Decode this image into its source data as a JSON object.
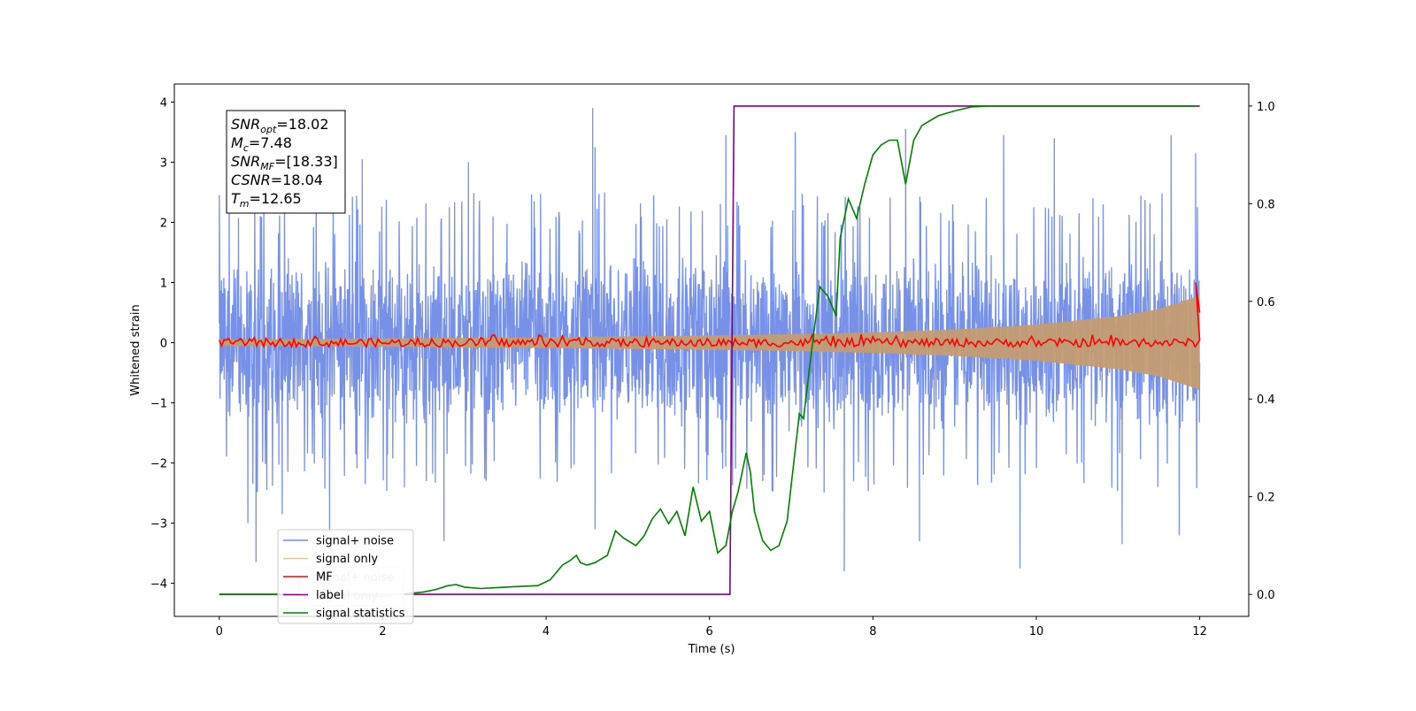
{
  "chart_data": {
    "type": "line",
    "xlabel": "Time (s)",
    "ylabel": "Whitened strain",
    "xlim": [
      -0.55,
      12.6
    ],
    "ylim": [
      -4.55,
      4.3
    ],
    "y2lim": [
      -0.045,
      1.045
    ],
    "xticks": [
      0,
      2,
      4,
      6,
      8,
      10,
      12
    ],
    "yticks": [
      -4,
      -3,
      -2,
      -1,
      0,
      1,
      2,
      3,
      4
    ],
    "y2ticks": [
      0.0,
      0.2,
      0.4,
      0.6,
      0.8,
      1.0
    ],
    "ytick_labels": [
      "−4",
      "−3",
      "−2",
      "−1",
      "0",
      "1",
      "2",
      "3",
      "4"
    ],
    "y2tick_labels": [
      "0.0",
      "0.2",
      "0.4",
      "0.6",
      "0.8",
      "1.0"
    ],
    "grid": false,
    "legend_position": "lower-left",
    "info_box": {
      "lines": [
        {
          "sym": "SNR",
          "sub": "opt",
          "value": "=18.02"
        },
        {
          "sym": "M",
          "sub": "c",
          "value": "=7.48"
        },
        {
          "sym": "SNR",
          "sub": "MF",
          "value": "=[18.33]"
        },
        {
          "sym": "CSNR",
          "sub": "",
          "value": "=18.04"
        },
        {
          "sym": "T",
          "sub": "m",
          "value": "=12.65"
        }
      ]
    },
    "legend": [
      {
        "label": "signal+ noise",
        "color": "#6f8be6"
      },
      {
        "label": "signal only",
        "color": "#f5c16c"
      },
      {
        "label": "MF",
        "color": "#ff0000"
      },
      {
        "label": "label",
        "color": "#800080"
      },
      {
        "label": "signal statistics",
        "color": "#008000"
      }
    ],
    "ghost_legend": [
      {
        "label": "signal+ noise"
      },
      {
        "label": "signal only"
      }
    ],
    "series": [
      {
        "name": "signal+ noise",
        "axis": "left",
        "color": "#6f8be6",
        "x_range": [
          0,
          12
        ],
        "envelope_typical": 1.5,
        "notable_peaks": [
          {
            "x": 0.0,
            "y": 2.45
          },
          {
            "x": 0.12,
            "y": 2.7
          },
          {
            "x": 0.35,
            "y": -3.0
          },
          {
            "x": 0.45,
            "y": -3.65
          },
          {
            "x": 0.77,
            "y": -2.85
          },
          {
            "x": 1.35,
            "y": -3.15
          },
          {
            "x": 1.75,
            "y": 3.05
          },
          {
            "x": 2.75,
            "y": -3.3
          },
          {
            "x": 3.05,
            "y": 3.0
          },
          {
            "x": 4.6,
            "y": 3.25
          },
          {
            "x": 4.6,
            "y": -3.1
          },
          {
            "x": 4.57,
            "y": 3.9
          },
          {
            "x": 6.2,
            "y": 3.45
          },
          {
            "x": 7.05,
            "y": 3.5
          },
          {
            "x": 7.65,
            "y": -3.8
          },
          {
            "x": 8.4,
            "y": 3.55
          },
          {
            "x": 8.57,
            "y": -3.3
          },
          {
            "x": 9.6,
            "y": 3.45
          },
          {
            "x": 9.8,
            "y": -3.75
          },
          {
            "x": 10.22,
            "y": 3.4
          },
          {
            "x": 11.05,
            "y": -3.35
          },
          {
            "x": 11.65,
            "y": 3.45
          },
          {
            "x": 11.75,
            "y": -3.2
          },
          {
            "x": 11.95,
            "y": 3.15
          }
        ]
      },
      {
        "name": "signal only",
        "axis": "left",
        "color": "#c49c72",
        "envelope": {
          "x": [
            0,
            2,
            4,
            6,
            7,
            8,
            9,
            10,
            11,
            11.5,
            12
          ],
          "amp": [
            0.05,
            0.07,
            0.09,
            0.12,
            0.14,
            0.17,
            0.22,
            0.3,
            0.44,
            0.56,
            0.78
          ]
        }
      },
      {
        "name": "MF",
        "axis": "left",
        "color": "#ff0000",
        "x_range": [
          0,
          12
        ],
        "level": 0.0,
        "ripple": 0.07,
        "end_spike": {
          "x": 11.95,
          "y": 1.0
        }
      },
      {
        "name": "label",
        "axis": "right",
        "color": "#800080",
        "x": [
          0,
          6.25,
          6.3,
          12
        ],
        "y": [
          0.0,
          0.0,
          1.0,
          1.0
        ]
      },
      {
        "name": "signal statistics",
        "axis": "right",
        "color": "#008000",
        "x": [
          0,
          0.3,
          0.5,
          1.0,
          1.5,
          2.0,
          2.5,
          2.65,
          2.8,
          2.9,
          3.0,
          3.2,
          3.5,
          3.9,
          4.05,
          4.2,
          4.3,
          4.37,
          4.42,
          4.5,
          4.6,
          4.75,
          4.85,
          4.95,
          5.1,
          5.2,
          5.3,
          5.4,
          5.5,
          5.6,
          5.7,
          5.8,
          5.9,
          6.0,
          6.1,
          6.2,
          6.28,
          6.35,
          6.45,
          6.5,
          6.55,
          6.65,
          6.75,
          6.85,
          6.95,
          7.1,
          7.15,
          7.25,
          7.35,
          7.45,
          7.55,
          7.6,
          7.7,
          7.8,
          7.9,
          8.0,
          8.1,
          8.2,
          8.3,
          8.4,
          8.5,
          8.6,
          8.8,
          9.0,
          9.2,
          9.4,
          9.7,
          10.0,
          11.0,
          11.95
        ],
        "y": [
          0.0,
          0.0,
          0.0,
          0.0,
          -0.002,
          -0.004,
          0.005,
          0.01,
          0.018,
          0.02,
          0.015,
          0.012,
          0.015,
          0.018,
          0.03,
          0.06,
          0.07,
          0.08,
          0.065,
          0.06,
          0.065,
          0.08,
          0.13,
          0.115,
          0.1,
          0.12,
          0.155,
          0.175,
          0.145,
          0.17,
          0.12,
          0.22,
          0.15,
          0.17,
          0.085,
          0.1,
          0.17,
          0.21,
          0.29,
          0.25,
          0.17,
          0.11,
          0.09,
          0.1,
          0.15,
          0.37,
          0.36,
          0.5,
          0.63,
          0.61,
          0.57,
          0.73,
          0.81,
          0.77,
          0.84,
          0.9,
          0.92,
          0.93,
          0.93,
          0.84,
          0.93,
          0.96,
          0.98,
          0.99,
          0.998,
          1.0,
          1.0,
          1.0,
          1.0,
          1.0
        ]
      }
    ]
  }
}
